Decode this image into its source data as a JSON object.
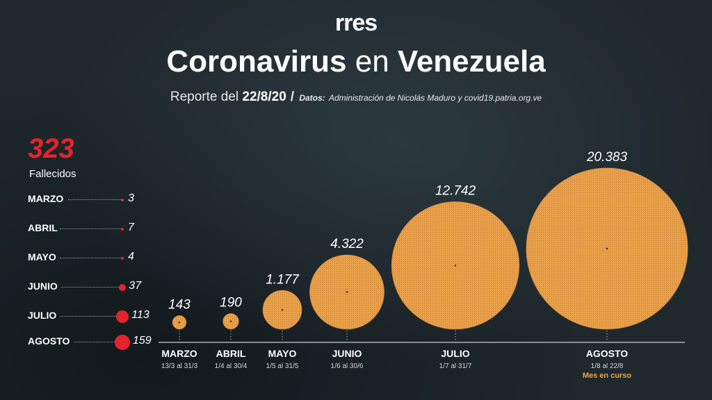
{
  "header": {
    "logo": "rres",
    "title_part1": "Coronavirus",
    "title_part2": "en",
    "title_part3": "Venezuela",
    "report_label": "Reporte del",
    "report_date": "22/8/20",
    "slash": "/",
    "source_label": "Datos:",
    "source_text": "Administración de Nicolás Maduro y covid19.patria.org.ve"
  },
  "deaths": {
    "total": "323",
    "label": "Fallecidos",
    "color": "#e5232a",
    "rows": [
      {
        "month": "MARZO",
        "value": 3
      },
      {
        "month": "ABRIL",
        "value": 7
      },
      {
        "month": "MAYO",
        "value": 4
      },
      {
        "month": "JUNIO",
        "value": 37
      },
      {
        "month": "JULIO",
        "value": 113
      },
      {
        "month": "AGOSTO",
        "value": 159
      }
    ]
  },
  "chart_data": {
    "type": "bubble",
    "categories": [
      "MARZO",
      "ABRIL",
      "MAYO",
      "JUNIO",
      "JULIO",
      "AGOSTO"
    ],
    "ranges": [
      "13/3 al 31/3",
      "1/4 al 30/4",
      "1/5 al 31/5",
      "1/6 al 30/6",
      "1/7 al 31/7",
      "1/8 al 22/8"
    ],
    "values": [
      143,
      190,
      1177,
      4322,
      12742,
      20383
    ],
    "value_labels": [
      "143",
      "190",
      "1.177",
      "4.322",
      "12.742",
      "20.383"
    ],
    "note": "Mes en curso",
    "note_category": "AGOSTO",
    "bubble_color": "#e9a04a",
    "note_color": "#f0a640"
  }
}
